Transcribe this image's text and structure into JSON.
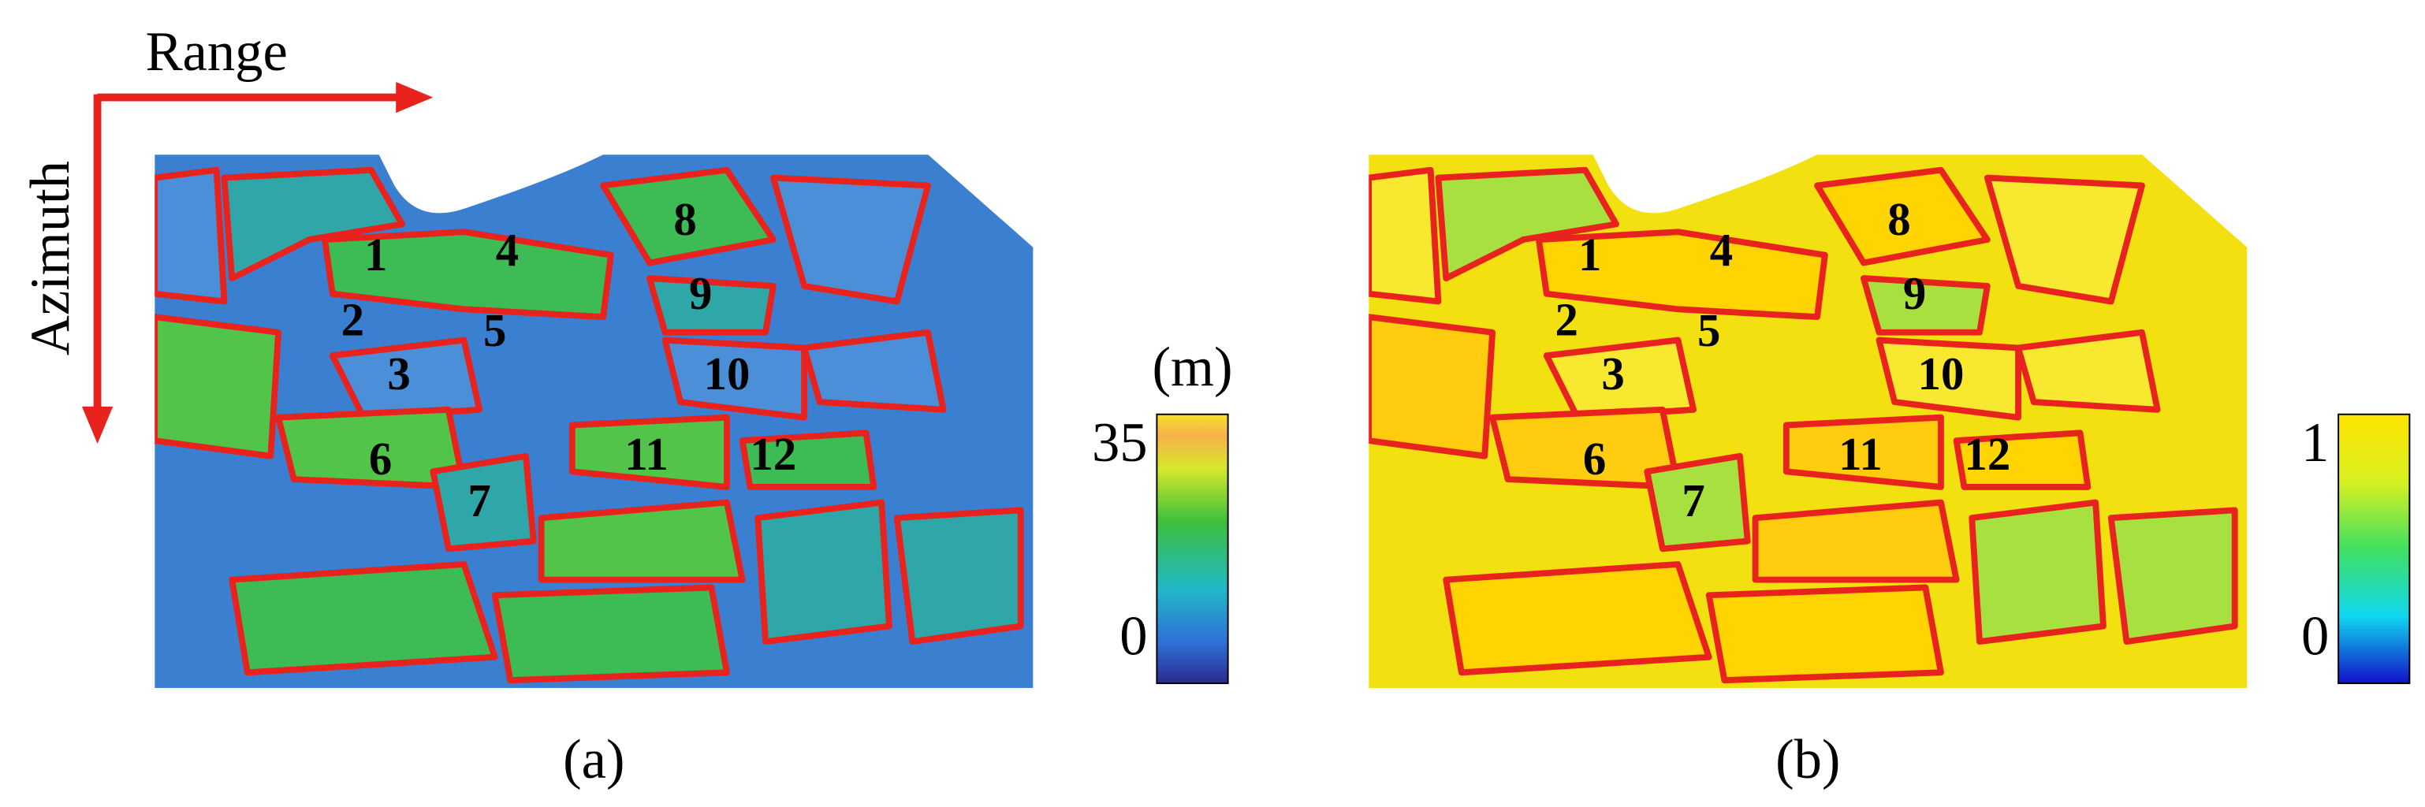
{
  "axes": {
    "range_label": "Range",
    "azimuth_label": "Azimuth"
  },
  "panels": [
    {
      "label": "(a)",
      "colorbar": {
        "unit": "(m)",
        "max": "35",
        "min": "0"
      },
      "fields": [
        "1",
        "2",
        "3",
        "4",
        "5",
        "6",
        "7",
        "8",
        "9",
        "10",
        "11",
        "12"
      ]
    },
    {
      "label": "(b)",
      "colorbar": {
        "max": "1",
        "min": "0"
      },
      "fields": [
        "1",
        "2",
        "3",
        "4",
        "5",
        "6",
        "7",
        "8",
        "9",
        "10",
        "11",
        "12"
      ]
    }
  ]
}
